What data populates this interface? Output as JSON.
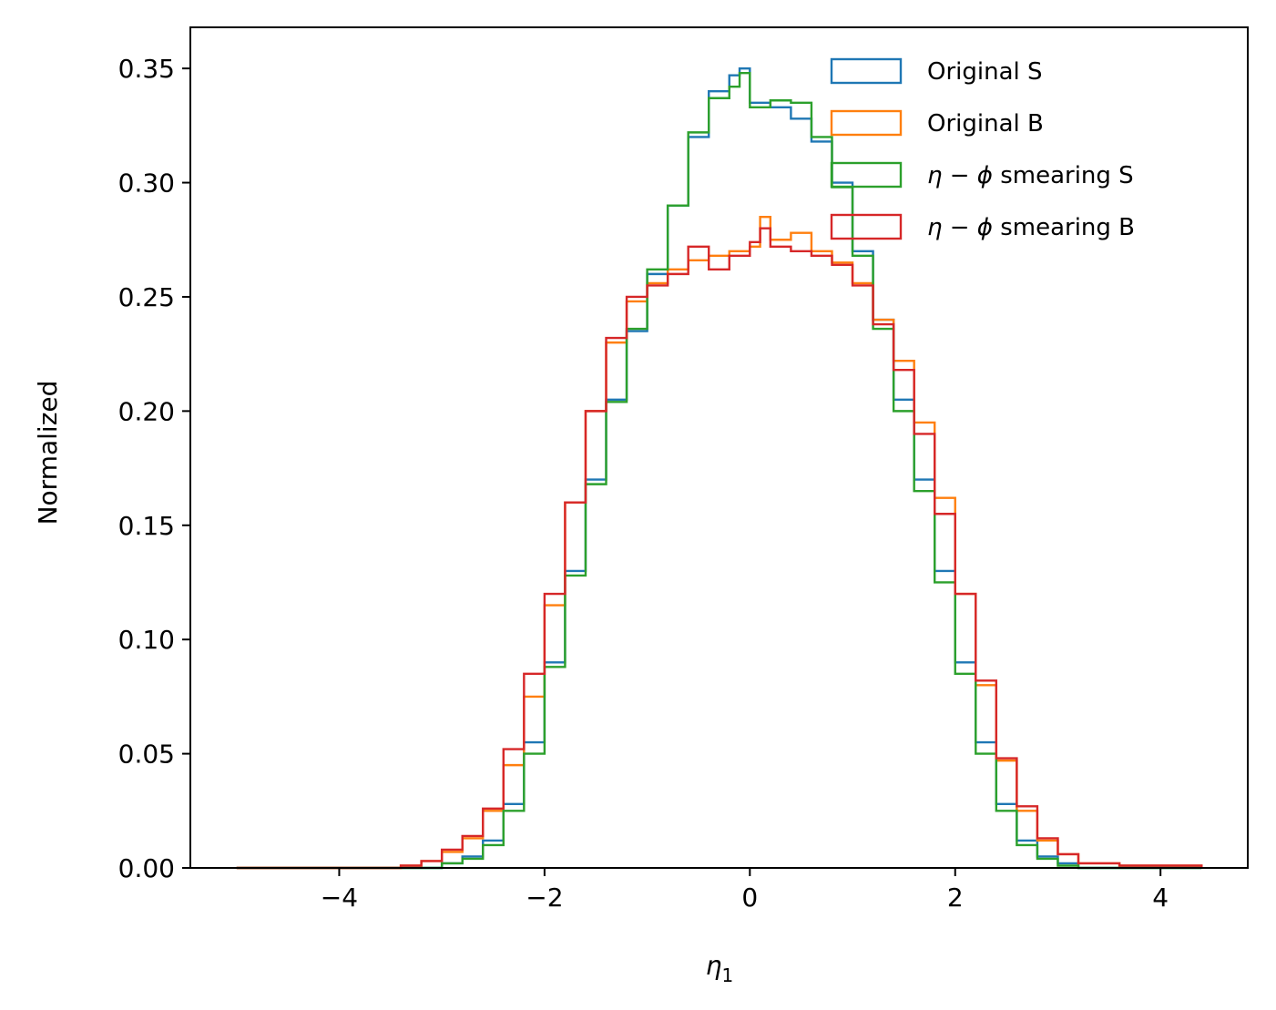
{
  "chart_data": {
    "type": "histogram-step",
    "xlabel_symbol": "η",
    "xlabel_subscript": "1",
    "ylabel": "Normalized",
    "xlim": [
      -5.45,
      4.85
    ],
    "ylim": [
      0,
      0.368
    ],
    "xticks": [
      -4,
      -2,
      0,
      2,
      4
    ],
    "xtick_labels": [
      "−4",
      "−2",
      "0",
      "2",
      "4"
    ],
    "yticks": [
      0.0,
      0.05,
      0.1,
      0.15,
      0.2,
      0.25,
      0.3,
      0.35
    ],
    "ytick_labels": [
      "0.00",
      "0.05",
      "0.10",
      "0.15",
      "0.20",
      "0.25",
      "0.30",
      "0.35"
    ],
    "grid": false,
    "legend_position": "top-right",
    "series": [
      {
        "name_sym": "Original S",
        "name_rest": "",
        "color": "#1f77b4",
        "points": [
          [
            -5.0,
            0.0
          ],
          [
            -3.2,
            0.0
          ],
          [
            -3.0,
            0.002
          ],
          [
            -2.8,
            0.005
          ],
          [
            -2.6,
            0.012
          ],
          [
            -2.4,
            0.028
          ],
          [
            -2.2,
            0.055
          ],
          [
            -2.0,
            0.09
          ],
          [
            -1.8,
            0.13
          ],
          [
            -1.6,
            0.17
          ],
          [
            -1.4,
            0.205
          ],
          [
            -1.2,
            0.235
          ],
          [
            -1.0,
            0.26
          ],
          [
            -0.8,
            0.29
          ],
          [
            -0.6,
            0.32
          ],
          [
            -0.4,
            0.34
          ],
          [
            -0.2,
            0.347
          ],
          [
            -0.1,
            0.35
          ],
          [
            0.0,
            0.335
          ],
          [
            0.2,
            0.333
          ],
          [
            0.4,
            0.328
          ],
          [
            0.6,
            0.318
          ],
          [
            0.8,
            0.3
          ],
          [
            1.0,
            0.27
          ],
          [
            1.2,
            0.24
          ],
          [
            1.4,
            0.205
          ],
          [
            1.6,
            0.17
          ],
          [
            1.8,
            0.13
          ],
          [
            2.0,
            0.09
          ],
          [
            2.2,
            0.055
          ],
          [
            2.4,
            0.028
          ],
          [
            2.6,
            0.012
          ],
          [
            2.8,
            0.005
          ],
          [
            3.0,
            0.002
          ],
          [
            3.2,
            0.0
          ],
          [
            4.4,
            0.0
          ]
        ]
      },
      {
        "name_sym": "Original B",
        "name_rest": "",
        "color": "#ff7f0e",
        "points": [
          [
            -5.0,
            0.0
          ],
          [
            -3.4,
            0.001
          ],
          [
            -3.2,
            0.003
          ],
          [
            -3.0,
            0.007
          ],
          [
            -2.8,
            0.013
          ],
          [
            -2.6,
            0.025
          ],
          [
            -2.4,
            0.045
          ],
          [
            -2.2,
            0.075
          ],
          [
            -2.0,
            0.115
          ],
          [
            -1.8,
            0.16
          ],
          [
            -1.6,
            0.2
          ],
          [
            -1.4,
            0.23
          ],
          [
            -1.2,
            0.248
          ],
          [
            -1.0,
            0.256
          ],
          [
            -0.8,
            0.262
          ],
          [
            -0.6,
            0.266
          ],
          [
            -0.4,
            0.268
          ],
          [
            -0.2,
            0.27
          ],
          [
            0.0,
            0.272
          ],
          [
            0.1,
            0.285
          ],
          [
            0.2,
            0.275
          ],
          [
            0.4,
            0.278
          ],
          [
            0.6,
            0.27
          ],
          [
            0.8,
            0.265
          ],
          [
            1.0,
            0.256
          ],
          [
            1.2,
            0.24
          ],
          [
            1.4,
            0.222
          ],
          [
            1.6,
            0.195
          ],
          [
            1.8,
            0.162
          ],
          [
            2.0,
            0.12
          ],
          [
            2.2,
            0.08
          ],
          [
            2.4,
            0.047
          ],
          [
            2.6,
            0.025
          ],
          [
            2.8,
            0.012
          ],
          [
            3.0,
            0.006
          ],
          [
            3.2,
            0.002
          ],
          [
            3.6,
            0.001
          ],
          [
            4.4,
            0.0
          ]
        ]
      },
      {
        "name_sym": "η − ϕ",
        "name_rest": " smearing S",
        "color": "#2ca02c",
        "points": [
          [
            -5.0,
            0.0
          ],
          [
            -3.2,
            0.0
          ],
          [
            -3.0,
            0.002
          ],
          [
            -2.8,
            0.004
          ],
          [
            -2.6,
            0.01
          ],
          [
            -2.4,
            0.025
          ],
          [
            -2.2,
            0.05
          ],
          [
            -2.0,
            0.088
          ],
          [
            -1.8,
            0.128
          ],
          [
            -1.6,
            0.168
          ],
          [
            -1.4,
            0.204
          ],
          [
            -1.2,
            0.236
          ],
          [
            -1.0,
            0.262
          ],
          [
            -0.8,
            0.29
          ],
          [
            -0.6,
            0.322
          ],
          [
            -0.4,
            0.337
          ],
          [
            -0.2,
            0.342
          ],
          [
            -0.1,
            0.348
          ],
          [
            0.0,
            0.333
          ],
          [
            0.2,
            0.336
          ],
          [
            0.4,
            0.335
          ],
          [
            0.6,
            0.32
          ],
          [
            0.8,
            0.298
          ],
          [
            1.0,
            0.268
          ],
          [
            1.2,
            0.236
          ],
          [
            1.4,
            0.2
          ],
          [
            1.6,
            0.165
          ],
          [
            1.8,
            0.125
          ],
          [
            2.0,
            0.085
          ],
          [
            2.2,
            0.05
          ],
          [
            2.4,
            0.025
          ],
          [
            2.6,
            0.01
          ],
          [
            2.8,
            0.004
          ],
          [
            3.0,
            0.001
          ],
          [
            3.2,
            0.0
          ],
          [
            4.4,
            0.0
          ]
        ]
      },
      {
        "name_sym": "η − ϕ",
        "name_rest": " smearing B",
        "color": "#d62728",
        "points": [
          [
            -5.0,
            0.0
          ],
          [
            -3.4,
            0.001
          ],
          [
            -3.2,
            0.003
          ],
          [
            -3.0,
            0.008
          ],
          [
            -2.8,
            0.014
          ],
          [
            -2.6,
            0.026
          ],
          [
            -2.4,
            0.052
          ],
          [
            -2.2,
            0.085
          ],
          [
            -2.0,
            0.12
          ],
          [
            -1.8,
            0.16
          ],
          [
            -1.6,
            0.2
          ],
          [
            -1.4,
            0.232
          ],
          [
            -1.2,
            0.25
          ],
          [
            -1.0,
            0.255
          ],
          [
            -0.8,
            0.26
          ],
          [
            -0.6,
            0.272
          ],
          [
            -0.4,
            0.262
          ],
          [
            -0.2,
            0.268
          ],
          [
            0.0,
            0.274
          ],
          [
            0.1,
            0.28
          ],
          [
            0.2,
            0.272
          ],
          [
            0.4,
            0.27
          ],
          [
            0.6,
            0.268
          ],
          [
            0.8,
            0.264
          ],
          [
            1.0,
            0.255
          ],
          [
            1.2,
            0.238
          ],
          [
            1.4,
            0.218
          ],
          [
            1.6,
            0.19
          ],
          [
            1.8,
            0.155
          ],
          [
            2.0,
            0.12
          ],
          [
            2.2,
            0.082
          ],
          [
            2.4,
            0.048
          ],
          [
            2.6,
            0.027
          ],
          [
            2.8,
            0.013
          ],
          [
            3.0,
            0.006
          ],
          [
            3.2,
            0.002
          ],
          [
            3.6,
            0.001
          ],
          [
            4.4,
            0.0
          ]
        ]
      }
    ]
  }
}
